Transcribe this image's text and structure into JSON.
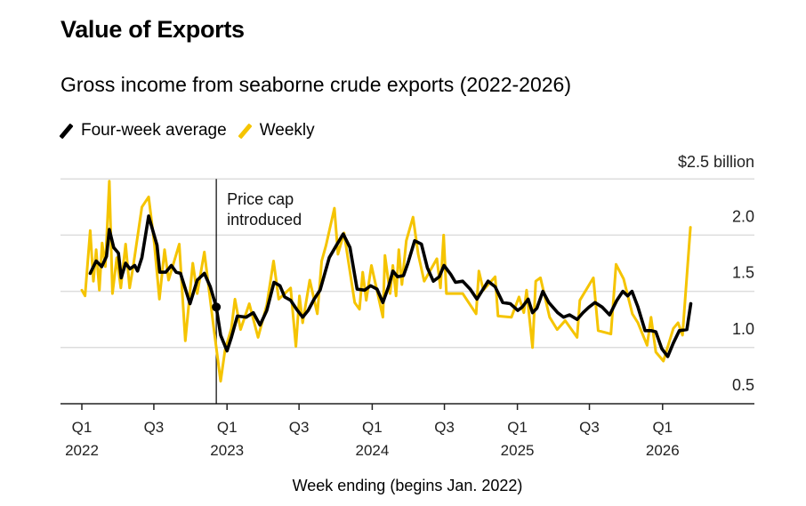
{
  "title": "Value of Exports",
  "subtitle": "Gross income from seaborne crude exports (2022-2026)",
  "legend": [
    {
      "label": "Four-week average",
      "color": "#000000"
    },
    {
      "label": "Weekly",
      "color": "#f5c400"
    }
  ],
  "chart_data": {
    "type": "line",
    "title": "Value of Exports",
    "subtitle": "Gross income from seaborne crude exports (2022-2026)",
    "xlabel": "Week ending (begins Jan. 2022)",
    "ylabel": "$2.5 billion",
    "ylim": [
      0.5,
      2.5
    ],
    "yticks": [
      {
        "value": 2.5,
        "label": "$2.5 billion"
      },
      {
        "value": 2.0,
        "label": "2.0"
      },
      {
        "value": 1.5,
        "label": "1.5"
      },
      {
        "value": 1.0,
        "label": "1.0"
      },
      {
        "value": 0.5,
        "label": "0.5"
      }
    ],
    "xticks": [
      {
        "date": "2022-01-01",
        "quarter": "Q1",
        "year": "2022"
      },
      {
        "date": "2022-07-01",
        "quarter": "Q3",
        "year": ""
      },
      {
        "date": "2023-01-01",
        "quarter": "Q1",
        "year": "2023"
      },
      {
        "date": "2023-07-01",
        "quarter": "Q3",
        "year": ""
      },
      {
        "date": "2024-01-01",
        "quarter": "Q1",
        "year": "2024"
      },
      {
        "date": "2024-07-01",
        "quarter": "Q3",
        "year": ""
      },
      {
        "date": "2025-01-01",
        "quarter": "Q1",
        "year": "2025"
      },
      {
        "date": "2025-07-01",
        "quarter": "Q3",
        "year": ""
      },
      {
        "date": "2026-01-01",
        "quarter": "Q1",
        "year": "2026"
      }
    ],
    "grid": true,
    "legend_position": "top-left",
    "annotation": {
      "date": "2022-12-05",
      "value": 1.36,
      "lines": [
        "Price cap",
        "introduced"
      ]
    },
    "series": [
      {
        "name": "Weekly",
        "color": "#f5c400",
        "points": [
          [
            "2022-01-01",
            1.51
          ],
          [
            "2022-01-09",
            1.46
          ],
          [
            "2022-01-22",
            2.04
          ],
          [
            "2022-01-30",
            1.59
          ],
          [
            "2022-02-06",
            1.87
          ],
          [
            "2022-02-14",
            1.51
          ],
          [
            "2022-02-21",
            1.93
          ],
          [
            "2022-03-01",
            1.72
          ],
          [
            "2022-03-11",
            2.48
          ],
          [
            "2022-03-19",
            1.48
          ],
          [
            "2022-03-30",
            1.8
          ],
          [
            "2022-04-09",
            1.53
          ],
          [
            "2022-04-21",
            1.92
          ],
          [
            "2022-05-01",
            1.53
          ],
          [
            "2022-05-10",
            1.72
          ],
          [
            "2022-06-01",
            2.25
          ],
          [
            "2022-06-18",
            2.34
          ],
          [
            "2022-07-02",
            1.93
          ],
          [
            "2022-07-15",
            1.43
          ],
          [
            "2022-07-28",
            1.87
          ],
          [
            "2022-08-07",
            1.6
          ],
          [
            "2022-09-03",
            1.92
          ],
          [
            "2022-09-18",
            1.06
          ],
          [
            "2022-10-07",
            1.75
          ],
          [
            "2022-10-18",
            1.48
          ],
          [
            "2022-11-05",
            1.85
          ],
          [
            "2022-11-28",
            1.19
          ],
          [
            "2022-12-16",
            0.7
          ],
          [
            "2022-12-27",
            0.98
          ],
          [
            "2023-01-12",
            1.17
          ],
          [
            "2023-01-21",
            1.43
          ],
          [
            "2023-02-04",
            1.16
          ],
          [
            "2023-02-26",
            1.39
          ],
          [
            "2023-03-20",
            1.09
          ],
          [
            "2023-04-11",
            1.38
          ],
          [
            "2023-04-28",
            1.77
          ],
          [
            "2023-05-11",
            1.43
          ],
          [
            "2023-06-10",
            1.53
          ],
          [
            "2023-06-23",
            1.01
          ],
          [
            "2023-07-02",
            1.46
          ],
          [
            "2023-07-10",
            1.22
          ],
          [
            "2023-07-28",
            1.6
          ],
          [
            "2023-08-16",
            1.3
          ],
          [
            "2023-08-27",
            1.77
          ],
          [
            "2023-09-07",
            1.91
          ],
          [
            "2023-09-28",
            2.24
          ],
          [
            "2023-10-07",
            1.83
          ],
          [
            "2023-10-22",
            2.02
          ],
          [
            "2023-11-18",
            1.4
          ],
          [
            "2023-11-30",
            1.34
          ],
          [
            "2023-12-08",
            1.67
          ],
          [
            "2023-12-17",
            1.42
          ],
          [
            "2023-12-30",
            1.73
          ],
          [
            "2024-01-28",
            1.27
          ],
          [
            "2024-02-02",
            1.82
          ],
          [
            "2024-02-15",
            1.48
          ],
          [
            "2024-02-22",
            1.73
          ],
          [
            "2024-03-01",
            1.46
          ],
          [
            "2024-03-08",
            1.87
          ],
          [
            "2024-03-16",
            1.56
          ],
          [
            "2024-03-27",
            1.95
          ],
          [
            "2024-04-13",
            2.16
          ],
          [
            "2024-04-26",
            1.83
          ],
          [
            "2024-05-11",
            1.59
          ],
          [
            "2024-06-12",
            1.79
          ],
          [
            "2024-06-21",
            1.53
          ],
          [
            "2024-06-29",
            2.0
          ],
          [
            "2024-07-06",
            1.48
          ],
          [
            "2024-08-16",
            1.48
          ],
          [
            "2024-09-19",
            1.3
          ],
          [
            "2024-09-26",
            1.68
          ],
          [
            "2024-10-07",
            1.51
          ],
          [
            "2024-11-06",
            1.63
          ],
          [
            "2024-11-13",
            1.28
          ],
          [
            "2024-12-17",
            1.27
          ],
          [
            "2025-01-05",
            1.45
          ],
          [
            "2025-01-17",
            1.31
          ],
          [
            "2025-01-24",
            1.51
          ],
          [
            "2025-02-08",
            1.0
          ],
          [
            "2025-02-16",
            1.59
          ],
          [
            "2025-02-28",
            1.62
          ],
          [
            "2025-03-23",
            1.27
          ],
          [
            "2025-04-11",
            1.16
          ],
          [
            "2025-05-01",
            1.24
          ],
          [
            "2025-05-31",
            1.09
          ],
          [
            "2025-06-07",
            1.42
          ],
          [
            "2025-07-11",
            1.62
          ],
          [
            "2025-07-23",
            1.15
          ],
          [
            "2025-08-24",
            1.12
          ],
          [
            "2025-09-06",
            1.74
          ],
          [
            "2025-09-25",
            1.61
          ],
          [
            "2025-10-17",
            1.3
          ],
          [
            "2025-10-31",
            1.22
          ],
          [
            "2025-11-23",
            1.02
          ],
          [
            "2025-12-03",
            1.27
          ],
          [
            "2025-12-15",
            0.96
          ],
          [
            "2026-01-03",
            0.88
          ],
          [
            "2026-01-28",
            1.17
          ],
          [
            "2026-02-09",
            1.22
          ],
          [
            "2026-02-20",
            1.11
          ],
          [
            "2026-03-12",
            2.07
          ]
        ]
      },
      {
        "name": "Four-week average",
        "color": "#000000",
        "points": [
          [
            "2022-01-22",
            1.66
          ],
          [
            "2022-02-06",
            1.77
          ],
          [
            "2022-02-20",
            1.72
          ],
          [
            "2022-03-04",
            1.81
          ],
          [
            "2022-03-11",
            2.05
          ],
          [
            "2022-03-22",
            1.89
          ],
          [
            "2022-04-03",
            1.84
          ],
          [
            "2022-04-10",
            1.62
          ],
          [
            "2022-04-21",
            1.75
          ],
          [
            "2022-05-02",
            1.7
          ],
          [
            "2022-05-14",
            1.73
          ],
          [
            "2022-05-21",
            1.68
          ],
          [
            "2022-06-01",
            1.8
          ],
          [
            "2022-06-18",
            2.17
          ],
          [
            "2022-07-09",
            1.91
          ],
          [
            "2022-07-16",
            1.67
          ],
          [
            "2022-07-31",
            1.67
          ],
          [
            "2022-08-14",
            1.73
          ],
          [
            "2022-08-26",
            1.67
          ],
          [
            "2022-09-06",
            1.66
          ],
          [
            "2022-09-30",
            1.39
          ],
          [
            "2022-10-18",
            1.6
          ],
          [
            "2022-11-05",
            1.66
          ],
          [
            "2022-11-20",
            1.54
          ],
          [
            "2022-12-05",
            1.36
          ],
          [
            "2022-12-16",
            1.11
          ],
          [
            "2023-01-01",
            0.97
          ],
          [
            "2023-01-12",
            1.09
          ],
          [
            "2023-01-27",
            1.28
          ],
          [
            "2023-02-18",
            1.27
          ],
          [
            "2023-03-08",
            1.31
          ],
          [
            "2023-03-25",
            1.2
          ],
          [
            "2023-04-11",
            1.33
          ],
          [
            "2023-04-29",
            1.58
          ],
          [
            "2023-05-14",
            1.55
          ],
          [
            "2023-05-26",
            1.45
          ],
          [
            "2023-06-10",
            1.42
          ],
          [
            "2023-06-25",
            1.34
          ],
          [
            "2023-07-10",
            1.27
          ],
          [
            "2023-07-24",
            1.33
          ],
          [
            "2023-08-08",
            1.43
          ],
          [
            "2023-08-23",
            1.51
          ],
          [
            "2023-09-15",
            1.8
          ],
          [
            "2023-10-03",
            1.91
          ],
          [
            "2023-10-20",
            2.01
          ],
          [
            "2023-11-06",
            1.89
          ],
          [
            "2023-11-24",
            1.52
          ],
          [
            "2023-12-13",
            1.51
          ],
          [
            "2023-12-28",
            1.55
          ],
          [
            "2024-01-13",
            1.52
          ],
          [
            "2024-01-28",
            1.4
          ],
          [
            "2024-02-11",
            1.54
          ],
          [
            "2024-02-22",
            1.68
          ],
          [
            "2024-03-05",
            1.63
          ],
          [
            "2024-03-20",
            1.64
          ],
          [
            "2024-03-31",
            1.75
          ],
          [
            "2024-04-17",
            1.95
          ],
          [
            "2024-05-04",
            1.92
          ],
          [
            "2024-05-19",
            1.71
          ],
          [
            "2024-06-03",
            1.59
          ],
          [
            "2024-06-18",
            1.63
          ],
          [
            "2024-06-30",
            1.73
          ],
          [
            "2024-07-17",
            1.65
          ],
          [
            "2024-07-29",
            1.58
          ],
          [
            "2024-08-16",
            1.59
          ],
          [
            "2024-09-04",
            1.52
          ],
          [
            "2024-09-21",
            1.43
          ],
          [
            "2024-10-19",
            1.59
          ],
          [
            "2024-11-06",
            1.54
          ],
          [
            "2024-11-25",
            1.4
          ],
          [
            "2024-12-14",
            1.39
          ],
          [
            "2025-01-02",
            1.33
          ],
          [
            "2025-01-13",
            1.36
          ],
          [
            "2025-01-28",
            1.43
          ],
          [
            "2025-02-08",
            1.31
          ],
          [
            "2025-02-19",
            1.35
          ],
          [
            "2025-03-06",
            1.5
          ],
          [
            "2025-03-21",
            1.4
          ],
          [
            "2025-04-12",
            1.31
          ],
          [
            "2025-04-27",
            1.27
          ],
          [
            "2025-05-12",
            1.29
          ],
          [
            "2025-05-31",
            1.25
          ],
          [
            "2025-06-15",
            1.31
          ],
          [
            "2025-06-30",
            1.36
          ],
          [
            "2025-07-15",
            1.4
          ],
          [
            "2025-08-02",
            1.36
          ],
          [
            "2025-08-21",
            1.29
          ],
          [
            "2025-09-08",
            1.42
          ],
          [
            "2025-09-23",
            1.5
          ],
          [
            "2025-10-05",
            1.46
          ],
          [
            "2025-10-16",
            1.5
          ],
          [
            "2025-10-31",
            1.36
          ],
          [
            "2025-11-18",
            1.15
          ],
          [
            "2025-12-03",
            1.15
          ],
          [
            "2025-12-15",
            1.14
          ],
          [
            "2025-12-30",
            0.99
          ],
          [
            "2026-01-14",
            0.92
          ],
          [
            "2026-01-28",
            1.04
          ],
          [
            "2026-02-12",
            1.15
          ],
          [
            "2026-03-03",
            1.16
          ],
          [
            "2026-03-13",
            1.39
          ]
        ]
      }
    ]
  }
}
